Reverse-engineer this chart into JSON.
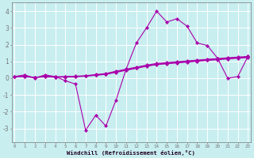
{
  "xlabel": "Windchill (Refroidissement éolien,°C)",
  "background_color": "#c8eef0",
  "grid_color": "#c8c8e8",
  "line_color": "#aa00aa",
  "x": [
    0,
    1,
    2,
    3,
    4,
    5,
    6,
    7,
    8,
    9,
    10,
    11,
    12,
    13,
    14,
    15,
    16,
    17,
    18,
    19,
    20,
    21,
    22,
    23
  ],
  "y_main": [
    0.1,
    0.2,
    0.0,
    0.2,
    0.1,
    -0.15,
    -0.35,
    -3.1,
    -2.2,
    -2.85,
    -1.3,
    0.55,
    2.1,
    3.0,
    4.0,
    3.35,
    3.55,
    3.1,
    2.1,
    1.95,
    1.2,
    0.0,
    0.1,
    1.3
  ],
  "y_line1": [
    0.1,
    0.12,
    0.05,
    0.12,
    0.08,
    0.1,
    0.12,
    0.15,
    0.22,
    0.28,
    0.42,
    0.54,
    0.66,
    0.78,
    0.88,
    0.93,
    0.98,
    1.03,
    1.08,
    1.13,
    1.17,
    1.22,
    1.26,
    1.3
  ],
  "y_line2": [
    0.1,
    0.11,
    0.04,
    0.11,
    0.07,
    0.08,
    0.1,
    0.13,
    0.19,
    0.25,
    0.38,
    0.5,
    0.62,
    0.74,
    0.84,
    0.89,
    0.94,
    0.99,
    1.04,
    1.09,
    1.13,
    1.18,
    1.22,
    1.26
  ],
  "y_line3": [
    0.1,
    0.1,
    0.03,
    0.1,
    0.06,
    0.07,
    0.09,
    0.12,
    0.17,
    0.23,
    0.35,
    0.47,
    0.59,
    0.71,
    0.81,
    0.86,
    0.91,
    0.96,
    1.01,
    1.06,
    1.1,
    1.15,
    1.19,
    1.23
  ],
  "ylim": [
    -3.8,
    4.5
  ],
  "yticks": [
    -3,
    -2,
    -1,
    0,
    1,
    2,
    3,
    4
  ],
  "xlim": [
    -0.3,
    23.3
  ]
}
